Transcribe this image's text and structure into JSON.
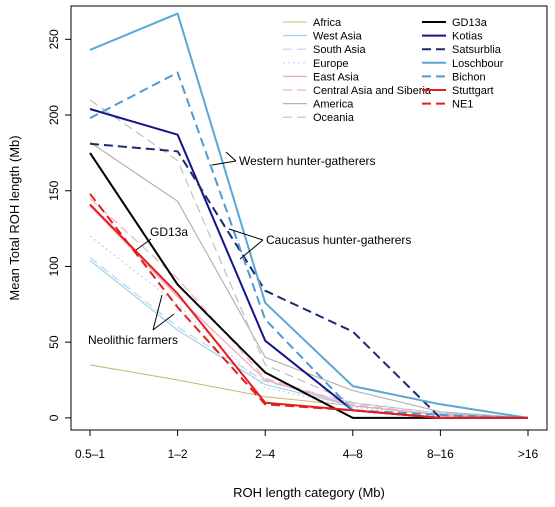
{
  "chart_data": {
    "type": "line",
    "xlabel": "ROH length category (Mb)",
    "ylabel": "Mean Total ROH length (Mb)",
    "categories": [
      "0.5–1",
      "1–2",
      "2–4",
      "4–8",
      "8–16",
      ">16"
    ],
    "ylim": [
      -8,
      272
    ],
    "yticks": [
      0,
      50,
      100,
      150,
      200,
      250
    ],
    "grid": false,
    "legend_position": "top-right",
    "series": [
      {
        "name": "Africa",
        "color": "#c8b46e",
        "dash": "solid",
        "width": 1,
        "values": [
          35,
          25,
          14,
          8,
          2,
          0
        ]
      },
      {
        "name": "West Asia",
        "color": "#9fd4e6",
        "dash": "solid",
        "width": 1.2,
        "values": [
          104,
          58,
          22,
          8,
          2,
          0
        ]
      },
      {
        "name": "South Asia",
        "color": "#b5d7ef",
        "dash": "dashed",
        "width": 1.2,
        "values": [
          106,
          60,
          24,
          10,
          3,
          0
        ]
      },
      {
        "name": "Europe",
        "color": "#c5d2f2",
        "dash": "dotted",
        "width": 1.2,
        "values": [
          120,
          75,
          20,
          7,
          2,
          0
        ]
      },
      {
        "name": "East Asia",
        "color": "#f0a6c2",
        "dash": "solid",
        "width": 1.2,
        "values": [
          140,
          80,
          25,
          8,
          2,
          0
        ]
      },
      {
        "name": "Central Asia and Siberia",
        "color": "#f4b0b0",
        "dash": "dashed",
        "width": 1.2,
        "values": [
          145,
          92,
          26,
          9,
          2,
          0
        ]
      },
      {
        "name": "America",
        "color": "#b4b4b4",
        "dash": "solid",
        "width": 1.2,
        "values": [
          182,
          143,
          40,
          18,
          4,
          0
        ]
      },
      {
        "name": "Oceania",
        "color": "#c0c0c0",
        "dash": "dashed",
        "width": 1.2,
        "values": [
          210,
          170,
          35,
          10,
          3,
          0
        ]
      },
      {
        "name": "GD13a",
        "color": "#000000",
        "dash": "solid",
        "width": 2,
        "values": [
          175,
          88,
          30,
          0,
          0,
          0
        ]
      },
      {
        "name": "Kotias",
        "color": "#14148a",
        "dash": "solid",
        "width": 2,
        "values": [
          204,
          187,
          51,
          5,
          0,
          0
        ]
      },
      {
        "name": "Satsurblia",
        "color": "#1c2c72",
        "dash": "dashed",
        "width": 2,
        "values": [
          181,
          176,
          84,
          57,
          0,
          0
        ]
      },
      {
        "name": "Loschbour",
        "color": "#5aa6d4",
        "dash": "solid",
        "width": 2,
        "values": [
          243,
          267,
          76,
          21,
          9,
          0
        ]
      },
      {
        "name": "Bichon",
        "color": "#4e9bd3",
        "dash": "dashed",
        "width": 2,
        "values": [
          198,
          228,
          65,
          5,
          2,
          0
        ]
      },
      {
        "name": "Stuttgart",
        "color": "#e41d1d",
        "dash": "solid",
        "width": 2,
        "values": [
          141,
          82,
          10,
          5,
          0,
          0
        ]
      },
      {
        "name": "NE1",
        "color": "#e41d1d",
        "dash": "dashed",
        "width": 2,
        "values": [
          148,
          73,
          9,
          5,
          0,
          0
        ]
      }
    ],
    "annotations": [
      {
        "id": "western",
        "text": "Western hunter-gatherers"
      },
      {
        "id": "caucasus",
        "text": "Caucasus hunter-gatherers"
      },
      {
        "id": "gd13a",
        "text": "GD13a"
      },
      {
        "id": "neolithic",
        "text": "Neolithic farmers"
      }
    ]
  }
}
